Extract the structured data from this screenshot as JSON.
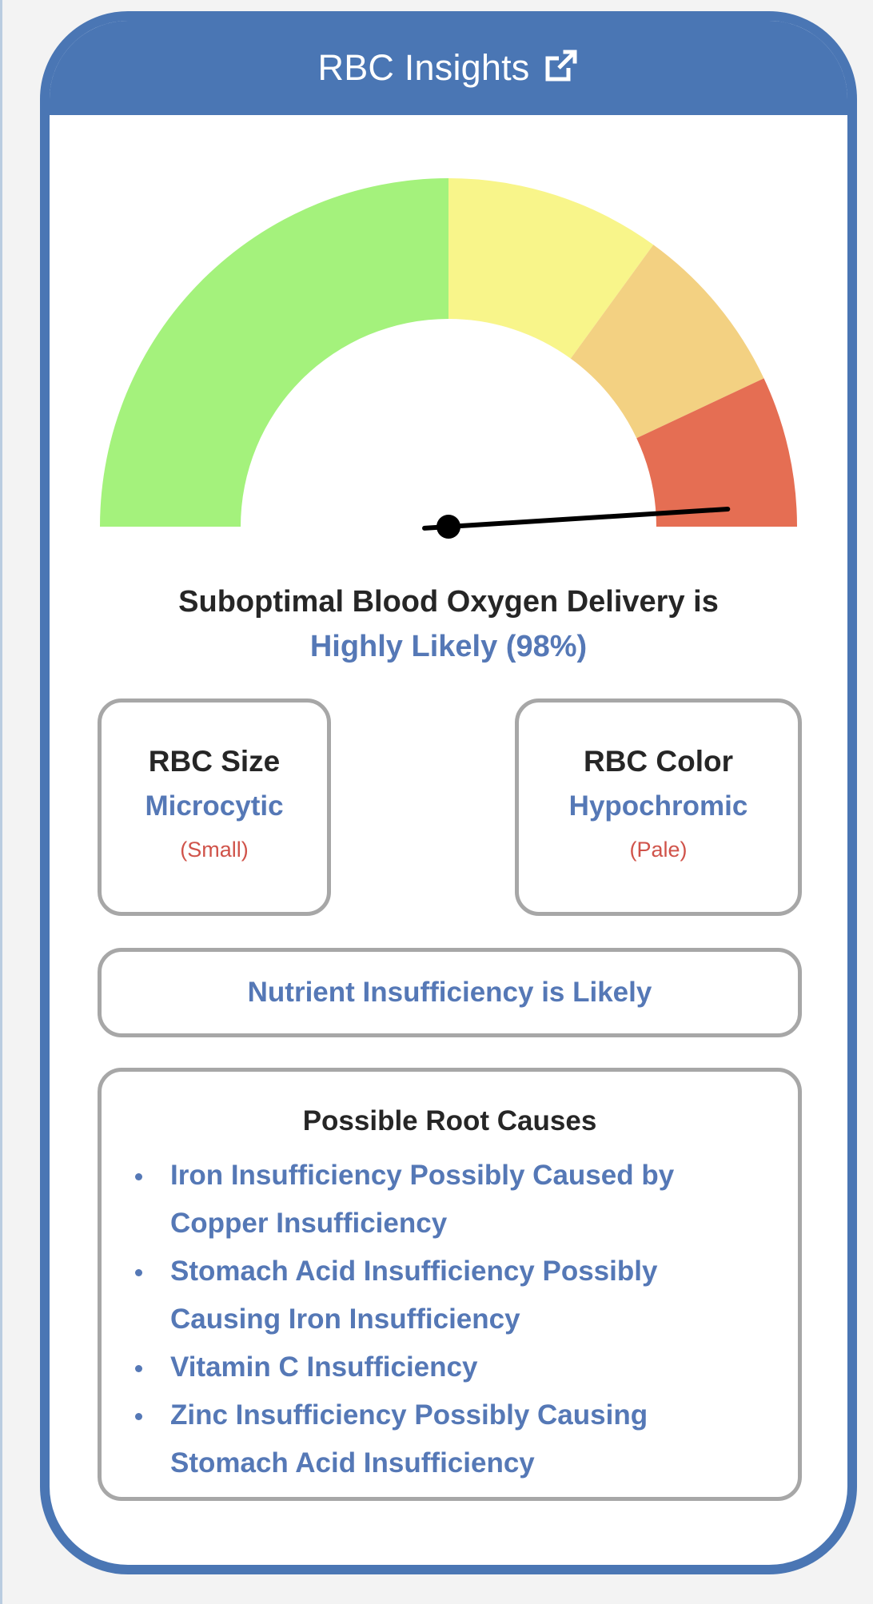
{
  "card": {
    "title": "RBC Insights",
    "external_link_icon": "external-link-icon",
    "header_color": "#4a76b4"
  },
  "gauge": {
    "value_percent": 98,
    "needle_color": "#000000",
    "zones": [
      {
        "name": "green",
        "color": "#a4f27c",
        "from": 0,
        "to": 50
      },
      {
        "name": "yellow",
        "color": "#f8f58a",
        "from": 50,
        "to": 70
      },
      {
        "name": "light-orange",
        "color": "#f3d182",
        "from": 70,
        "to": 86
      },
      {
        "name": "red",
        "color": "#e56e53",
        "from": 86,
        "to": 100
      }
    ]
  },
  "verdict": {
    "line1": "Suboptimal Blood Oxygen Delivery is",
    "line2": "Highly Likely (98%)"
  },
  "rbc_size": {
    "title": "RBC Size",
    "value": "Microcytic",
    "note": "(Small)"
  },
  "rbc_color": {
    "title": "RBC Color",
    "value": "Hypochromic",
    "note": "(Pale)"
  },
  "nutrient": {
    "text": "Nutrient Insufficiency is Likely"
  },
  "root_causes": {
    "title": "Possible Root Causes",
    "items": [
      {
        "line1": "Iron Insufficiency Possibly Caused by",
        "line2": "Copper Insufficiency"
      },
      {
        "line1": "Stomach Acid Insufficiency Possibly",
        "line2": "Causing Iron Insufficiency"
      },
      {
        "line1": "Vitamin C Insufficiency",
        "line2": ""
      },
      {
        "line1": "Zinc Insufficiency Possibly Causing",
        "line2": "Stomach Acid Insufficiency"
      }
    ]
  },
  "colors": {
    "accent_blue": "#5578b6",
    "note_red": "#d0534a",
    "box_border": "#a7a7a7"
  }
}
